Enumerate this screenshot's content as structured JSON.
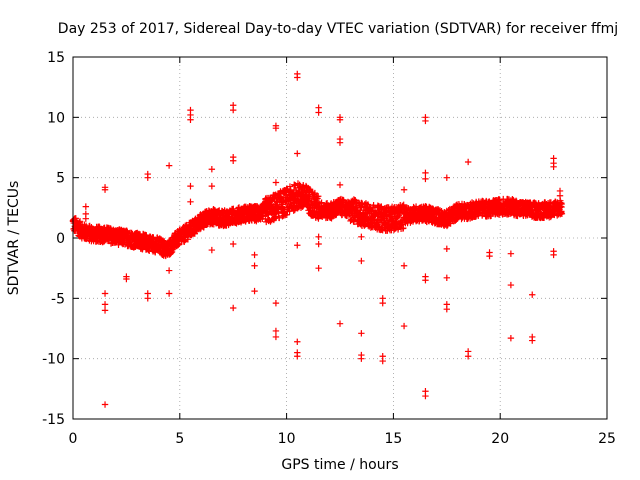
{
  "chart_data": {
    "type": "scatter",
    "title": "Day 253 of 2017, Sidereal Day-to-day VTEC variation (SDTVAR) for receiver ffmj",
    "xlabel": "GPS time / hours",
    "ylabel": "SDTVAR / TECUs",
    "xlim": [
      0,
      25
    ],
    "ylim": [
      -15,
      15
    ],
    "xticks": [
      "0",
      "5",
      "10",
      "15",
      "20",
      "25"
    ],
    "yticks": [
      "15",
      "10",
      "5",
      "0",
      "-5",
      "-10",
      "-15"
    ],
    "grid": true,
    "marker": "+",
    "color": "#ff0000",
    "baseline": [
      [
        0.0,
        1.2
      ],
      [
        0.5,
        0.5
      ],
      [
        1.0,
        0.3
      ],
      [
        1.5,
        0.3
      ],
      [
        2.0,
        0.1
      ],
      [
        2.5,
        0.0
      ],
      [
        3.0,
        -0.2
      ],
      [
        3.5,
        -0.4
      ],
      [
        4.0,
        -0.6
      ],
      [
        4.4,
        -1.0
      ],
      [
        4.8,
        -0.2
      ],
      [
        5.2,
        0.3
      ],
      [
        5.6,
        0.8
      ],
      [
        6.0,
        1.4
      ],
      [
        6.5,
        1.8
      ],
      [
        7.0,
        1.6
      ],
      [
        7.5,
        1.8
      ],
      [
        8.0,
        2.0
      ],
      [
        8.5,
        2.0
      ],
      [
        9.0,
        2.2
      ],
      [
        9.5,
        2.6
      ],
      [
        10.0,
        3.0
      ],
      [
        10.5,
        3.5
      ],
      [
        11.0,
        3.2
      ],
      [
        11.5,
        2.4
      ],
      [
        12.0,
        2.2
      ],
      [
        12.5,
        2.6
      ],
      [
        13.0,
        2.3
      ],
      [
        13.5,
        2.0
      ],
      [
        14.0,
        1.8
      ],
      [
        14.5,
        1.6
      ],
      [
        15.0,
        1.6
      ],
      [
        15.5,
        1.8
      ],
      [
        16.0,
        2.0
      ],
      [
        16.5,
        2.0
      ],
      [
        17.0,
        1.8
      ],
      [
        17.5,
        1.6
      ],
      [
        18.0,
        2.2
      ],
      [
        18.5,
        2.2
      ],
      [
        19.0,
        2.5
      ],
      [
        19.5,
        2.4
      ],
      [
        20.0,
        2.6
      ],
      [
        20.5,
        2.6
      ],
      [
        21.0,
        2.4
      ],
      [
        21.5,
        2.3
      ],
      [
        22.0,
        2.3
      ],
      [
        22.5,
        2.4
      ],
      [
        22.9,
        2.6
      ]
    ],
    "outliers": [
      [
        0.6,
        2.6
      ],
      [
        0.6,
        2.0
      ],
      [
        0.6,
        1.6
      ],
      [
        1.5,
        4.2
      ],
      [
        1.5,
        4.0
      ],
      [
        1.5,
        -4.6
      ],
      [
        1.5,
        -5.5
      ],
      [
        1.5,
        -6.0
      ],
      [
        1.5,
        -13.8
      ],
      [
        2.5,
        -3.4
      ],
      [
        2.5,
        -3.2
      ],
      [
        3.5,
        5.3
      ],
      [
        3.5,
        5.0
      ],
      [
        3.5,
        -4.6
      ],
      [
        3.5,
        -5.0
      ],
      [
        4.5,
        6.0
      ],
      [
        4.5,
        -2.7
      ],
      [
        4.5,
        -4.6
      ],
      [
        5.5,
        10.6
      ],
      [
        5.5,
        10.2
      ],
      [
        5.5,
        9.8
      ],
      [
        5.5,
        4.3
      ],
      [
        5.5,
        3.0
      ],
      [
        6.5,
        5.7
      ],
      [
        6.5,
        4.3
      ],
      [
        6.5,
        -1.0
      ],
      [
        7.5,
        11.0
      ],
      [
        7.5,
        10.6
      ],
      [
        7.5,
        6.7
      ],
      [
        7.5,
        6.4
      ],
      [
        7.5,
        -0.5
      ],
      [
        7.5,
        -5.8
      ],
      [
        8.5,
        -1.4
      ],
      [
        8.5,
        -2.3
      ],
      [
        8.5,
        -4.4
      ],
      [
        9.5,
        9.3
      ],
      [
        9.5,
        9.1
      ],
      [
        9.5,
        4.6
      ],
      [
        9.5,
        -5.4
      ],
      [
        9.5,
        -7.7
      ],
      [
        9.5,
        -8.2
      ],
      [
        10.5,
        13.6
      ],
      [
        10.5,
        13.3
      ],
      [
        10.5,
        7.0
      ],
      [
        10.5,
        -0.6
      ],
      [
        10.5,
        -8.6
      ],
      [
        10.5,
        -9.5
      ],
      [
        10.5,
        -9.8
      ],
      [
        11.5,
        10.8
      ],
      [
        11.5,
        10.4
      ],
      [
        11.5,
        0.1
      ],
      [
        11.5,
        -0.5
      ],
      [
        11.5,
        -2.5
      ],
      [
        12.5,
        10.0
      ],
      [
        12.5,
        9.8
      ],
      [
        12.5,
        8.2
      ],
      [
        12.5,
        7.9
      ],
      [
        12.5,
        4.4
      ],
      [
        12.5,
        -7.1
      ],
      [
        13.5,
        0.1
      ],
      [
        13.5,
        -1.9
      ],
      [
        13.5,
        -7.9
      ],
      [
        13.5,
        -9.7
      ],
      [
        13.5,
        -10.0
      ],
      [
        14.5,
        1.0
      ],
      [
        14.5,
        -5.0
      ],
      [
        14.5,
        -5.4
      ],
      [
        14.5,
        -9.8
      ],
      [
        14.5,
        -10.2
      ],
      [
        15.5,
        4.0
      ],
      [
        15.5,
        -2.3
      ],
      [
        15.5,
        -7.3
      ],
      [
        16.5,
        10.0
      ],
      [
        16.5,
        9.7
      ],
      [
        16.5,
        5.4
      ],
      [
        16.5,
        4.9
      ],
      [
        16.5,
        -3.2
      ],
      [
        16.5,
        -3.5
      ],
      [
        16.5,
        -12.7
      ],
      [
        16.5,
        -13.1
      ],
      [
        17.5,
        5.0
      ],
      [
        17.5,
        -0.9
      ],
      [
        17.5,
        -3.3
      ],
      [
        17.5,
        -5.5
      ],
      [
        17.5,
        -5.9
      ],
      [
        18.5,
        6.3
      ],
      [
        18.5,
        -9.4
      ],
      [
        18.5,
        -9.8
      ],
      [
        19.5,
        -1.2
      ],
      [
        19.5,
        -1.5
      ],
      [
        20.5,
        -1.3
      ],
      [
        20.5,
        -3.9
      ],
      [
        20.5,
        -8.3
      ],
      [
        21.5,
        -4.7
      ],
      [
        21.5,
        -8.2
      ],
      [
        21.5,
        -8.5
      ],
      [
        22.5,
        6.6
      ],
      [
        22.5,
        6.2
      ],
      [
        22.5,
        5.9
      ],
      [
        22.5,
        -1.1
      ],
      [
        22.5,
        -1.4
      ],
      [
        22.8,
        3.9
      ],
      [
        22.8,
        3.5
      ],
      [
        22.8,
        2.8
      ]
    ]
  }
}
